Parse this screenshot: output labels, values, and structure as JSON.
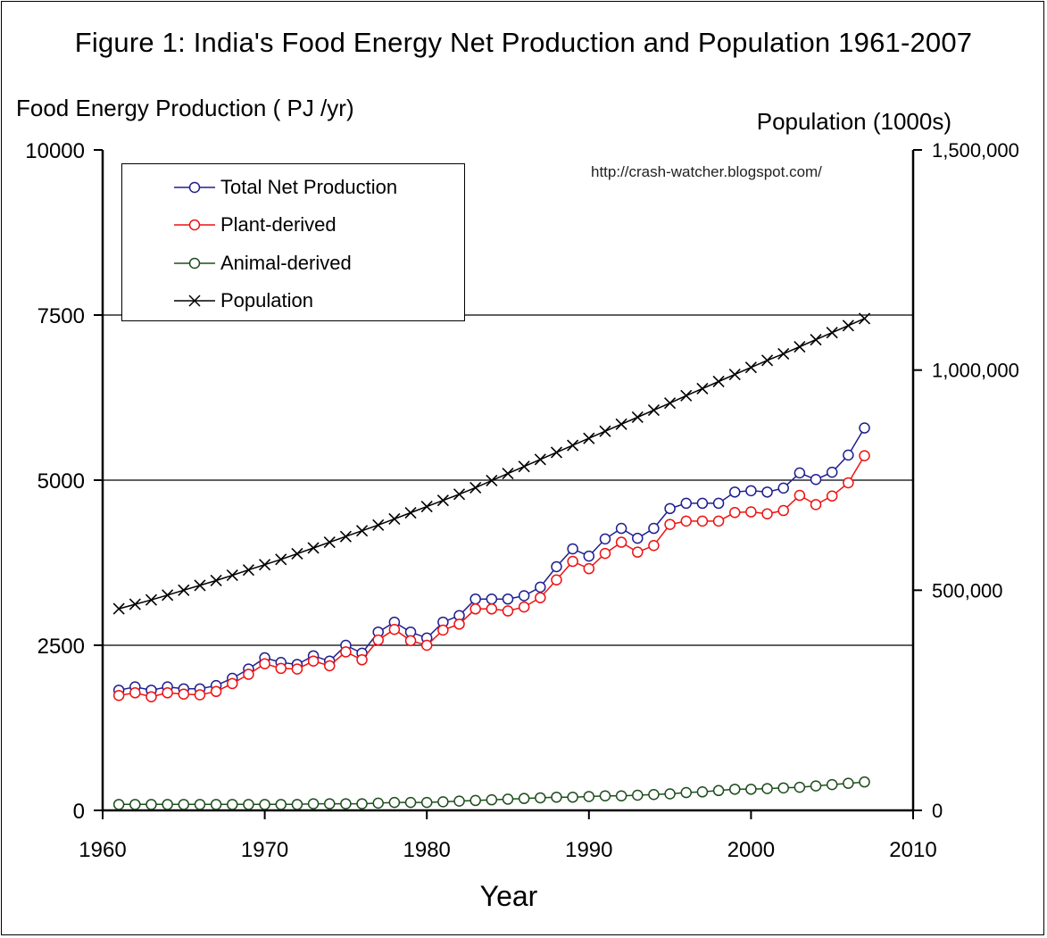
{
  "chart_data": {
    "type": "line",
    "title": "Figure 1: India's Food Energy Net Production and Population 1961-2007",
    "xlabel": "Year",
    "ylabel_left": "Food Energy Production ( PJ /yr)",
    "ylabel_right": "Population (1000s)",
    "annotation": "http://crash-watcher.blogspot.com/",
    "xlim": [
      1960,
      2010
    ],
    "ylim_left": [
      0,
      10000
    ],
    "ylim_right": [
      0,
      1500000
    ],
    "x_ticks": [
      "1960",
      "1970",
      "1980",
      "1990",
      "2000",
      "2010"
    ],
    "y_ticks_left": [
      "0",
      "2500",
      "5000",
      "7500",
      "10000"
    ],
    "y_ticks_right": [
      "0",
      "500,000",
      "1,000,000",
      "1,500,000"
    ],
    "grid": "horizontal at left-axis ticks",
    "legend_position": "top-left",
    "x": [
      1961,
      1962,
      1963,
      1964,
      1965,
      1966,
      1967,
      1968,
      1969,
      1970,
      1971,
      1972,
      1973,
      1974,
      1975,
      1976,
      1977,
      1978,
      1979,
      1980,
      1981,
      1982,
      1983,
      1984,
      1985,
      1986,
      1987,
      1988,
      1989,
      1990,
      1991,
      1992,
      1993,
      1994,
      1995,
      1996,
      1997,
      1998,
      1999,
      2000,
      2001,
      2002,
      2003,
      2004,
      2005,
      2006,
      2007
    ],
    "series": [
      {
        "name": "Total Net Production",
        "axis": "left",
        "color": "#1f1f8f",
        "marker": "circle",
        "values": [
          1820,
          1870,
          1820,
          1870,
          1840,
          1840,
          1890,
          2000,
          2140,
          2310,
          2240,
          2210,
          2340,
          2260,
          2500,
          2380,
          2700,
          2850,
          2700,
          2610,
          2850,
          2950,
          3200,
          3200,
          3200,
          3250,
          3380,
          3690,
          3960,
          3850,
          4110,
          4270,
          4120,
          4270,
          4570,
          4650,
          4650,
          4650,
          4820,
          4840,
          4820,
          4880,
          5110,
          5010,
          5120,
          5380,
          5790
        ]
      },
      {
        "name": "Plant-derived",
        "axis": "left",
        "color": "#ee1111",
        "marker": "circle",
        "values": [
          1740,
          1780,
          1720,
          1780,
          1760,
          1750,
          1800,
          1920,
          2060,
          2220,
          2150,
          2140,
          2260,
          2190,
          2400,
          2280,
          2580,
          2740,
          2570,
          2500,
          2730,
          2820,
          3050,
          3050,
          3020,
          3080,
          3220,
          3490,
          3770,
          3660,
          3890,
          4060,
          3910,
          4010,
          4330,
          4380,
          4380,
          4380,
          4510,
          4520,
          4490,
          4540,
          4770,
          4630,
          4760,
          4960,
          5370
        ]
      },
      {
        "name": "Animal-derived",
        "axis": "left",
        "color": "#1d4d1d",
        "marker": "circle",
        "values": [
          90,
          90,
          90,
          90,
          90,
          90,
          90,
          90,
          90,
          90,
          90,
          90,
          100,
          100,
          100,
          100,
          110,
          120,
          120,
          120,
          130,
          140,
          150,
          160,
          170,
          180,
          190,
          200,
          200,
          210,
          220,
          220,
          230,
          240,
          250,
          270,
          280,
          300,
          320,
          320,
          330,
          340,
          350,
          370,
          390,
          410,
          430
        ]
      },
      {
        "name": "Population",
        "axis": "right",
        "color": "#000000",
        "marker": "x",
        "values": [
          458000,
          468000,
          478000,
          489000,
          500000,
          511000,
          522000,
          534000,
          546000,
          558000,
          570000,
          583000,
          596000,
          609000,
          622000,
          635000,
          648000,
          662000,
          676000,
          690000,
          704000,
          718000,
          733000,
          749000,
          765000,
          781000,
          797000,
          813000,
          829000,
          845000,
          861000,
          877000,
          893000,
          909000,
          925000,
          942000,
          958000,
          974000,
          990000,
          1006000,
          1022000,
          1037000,
          1053000,
          1069000,
          1085000,
          1101000,
          1117000
        ]
      }
    ]
  }
}
